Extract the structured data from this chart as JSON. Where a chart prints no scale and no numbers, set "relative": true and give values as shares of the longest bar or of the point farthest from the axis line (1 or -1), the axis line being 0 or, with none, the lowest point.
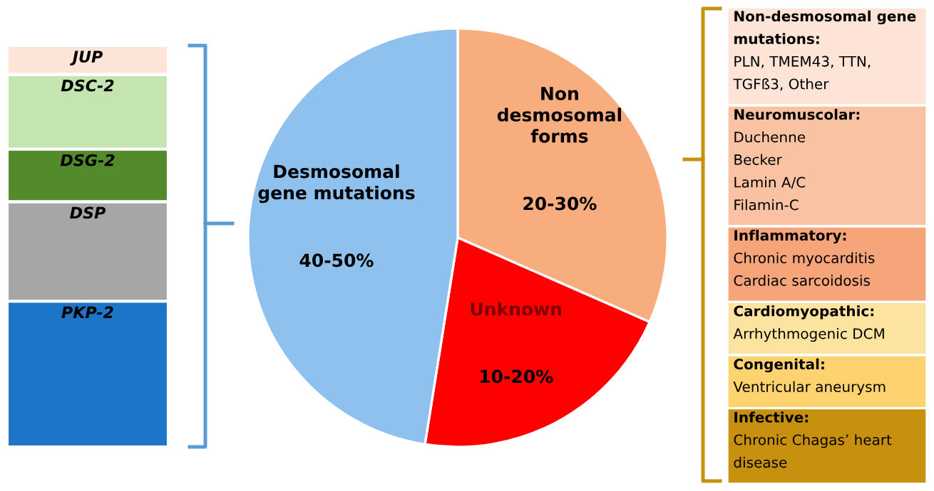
{
  "chart_data": [
    {
      "type": "bar",
      "categories": [
        null
      ],
      "stacked": true,
      "relative": true,
      "series": [
        {
          "name": "PKP-2",
          "color": "#1c75c8",
          "values": [
            0.363
          ]
        },
        {
          "name": "DSP",
          "color": "#a6a6a6",
          "values": [
            0.248
          ]
        },
        {
          "name": "DSG-2",
          "color": "#538a2c",
          "values": [
            0.131
          ]
        },
        {
          "name": "DSC-2",
          "color": "#c5e5b0",
          "values": [
            0.186
          ]
        },
        {
          "name": "JUP",
          "color": "#fce4d6",
          "values": [
            0.072
          ]
        }
      ]
    },
    {
      "type": "pie",
      "categories": [
        "Non desmosomal forms",
        "Unknown",
        "Desmosomal gene mutations"
      ],
      "values": [
        31.6,
        20.9,
        47.5
      ],
      "colors": [
        "#f8ad7f",
        "#ff0000",
        "#8fc1ee"
      ],
      "annotations": [
        "20-30%",
        "10-20%",
        "40-50%"
      ]
    },
    {
      "type": "other",
      "annotations": [
        "Non-desmosomal gene\nmutations:\nPLN, TMEM43, TTN,\nTGFß3, Other",
        "Neuromuscolar:\nDuchenne\nBecker\nLamin A/C\nFilamin-C",
        "Inflammatory:\nChronic myocarditis\nCardiac sarcoidosis",
        "Cardiomyopathic:\nArrhythmogenic DCM",
        "Congenital:\nVentricular aneurysm",
        "Infective:\nChronic Chagas’ heart\ndisease"
      ],
      "colors": [
        "#fde4d6",
        "#f9c3a3",
        "#f6a47a",
        "#fde3a0",
        "#fdd36f",
        "#c8900f"
      ]
    }
  ]
}
